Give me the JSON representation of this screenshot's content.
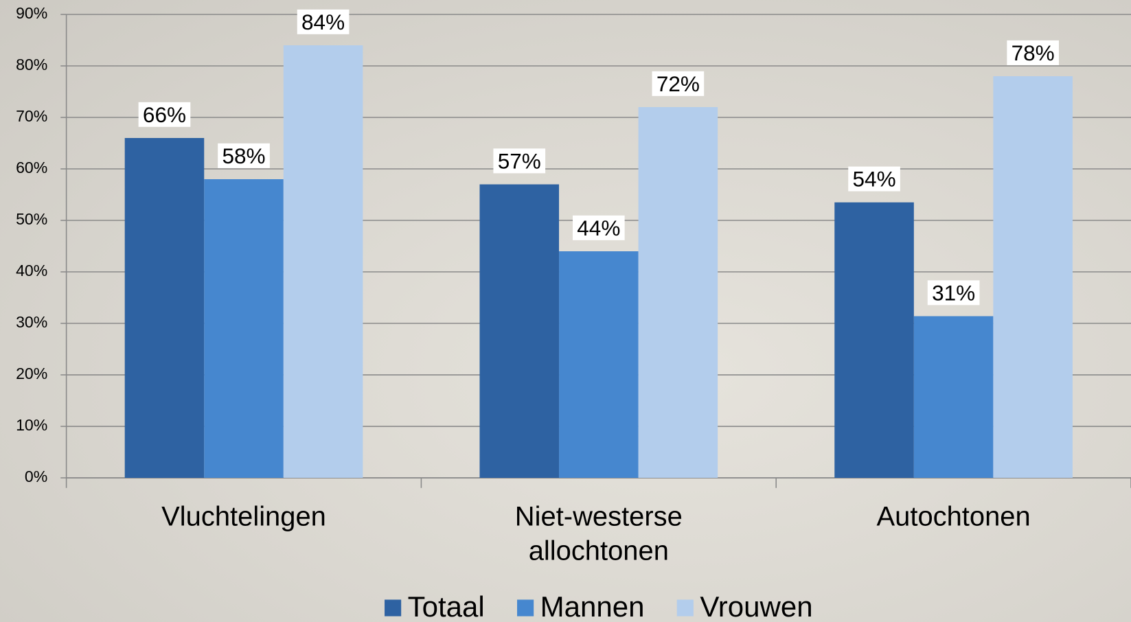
{
  "chart_data": {
    "type": "bar",
    "categories": [
      "Vluchtelingen",
      "Niet-westerse allochtonen",
      "Autochtonen"
    ],
    "series": [
      {
        "name": "Totaal",
        "color": "#2e62a2",
        "values": [
          66,
          57,
          53.5
        ],
        "value_labels": [
          "66%",
          "57%",
          "54%"
        ]
      },
      {
        "name": "Mannen",
        "color": "#4687cf",
        "values": [
          58,
          44,
          31.4
        ],
        "value_labels": [
          "58%",
          "44%",
          "31%"
        ]
      },
      {
        "name": "Vrouwen",
        "color": "#b3cdec",
        "values": [
          84,
          72,
          78
        ],
        "value_labels": [
          "84%",
          "72%",
          "78%"
        ]
      }
    ],
    "ylim": [
      0,
      90
    ],
    "yticks": [
      {
        "value": 0,
        "label": "0%"
      },
      {
        "value": 10,
        "label": "10%"
      },
      {
        "value": 20,
        "label": "20%"
      },
      {
        "value": 30,
        "label": "30%"
      },
      {
        "value": 40,
        "label": "40%"
      },
      {
        "value": 50,
        "label": "50%"
      },
      {
        "value": 60,
        "label": "60%"
      },
      {
        "value": 70,
        "label": "70%"
      },
      {
        "value": 80,
        "label": "80%"
      },
      {
        "value": 90,
        "label": "90%"
      }
    ],
    "grid": true,
    "legend": "bottom"
  }
}
